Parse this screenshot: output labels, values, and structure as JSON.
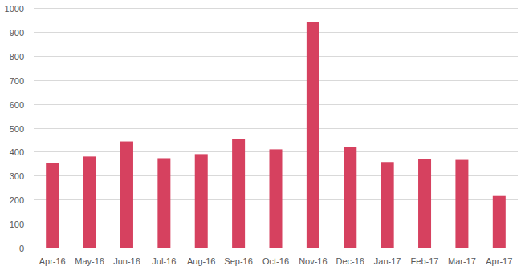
{
  "chart_data": {
    "type": "bar",
    "categories": [
      "Apr-16",
      "May-16",
      "Jun-16",
      "Jul-16",
      "Aug-16",
      "Sep-16",
      "Oct-16",
      "Nov-16",
      "Dec-16",
      "Jan-17",
      "Feb-17",
      "Mar-17",
      "Apr-17"
    ],
    "values": [
      352,
      380,
      443,
      373,
      390,
      453,
      410,
      940,
      420,
      357,
      370,
      366,
      215
    ],
    "color": "#d6415f",
    "ylim": [
      0,
      1000
    ],
    "yticks": [
      0,
      100,
      200,
      300,
      400,
      500,
      600,
      700,
      800,
      900,
      1000
    ],
    "grid": true
  }
}
